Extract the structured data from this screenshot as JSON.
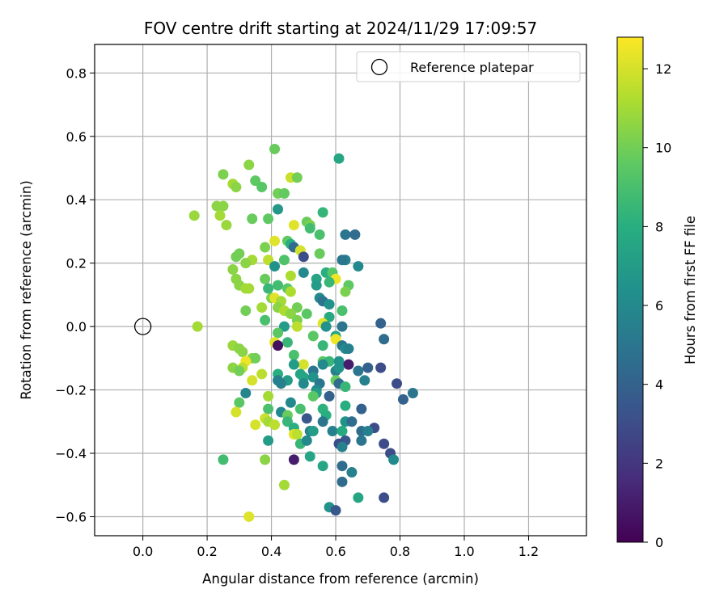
{
  "chart_data": {
    "type": "scatter",
    "title": "FOV centre drift starting at 2024/11/29 17:09:57",
    "xlabel": "Angular distance from reference (arcmin)",
    "ylabel": "Rotation from reference (arcmin)",
    "xlim": [
      -0.15,
      1.38
    ],
    "ylim": [
      -0.66,
      0.89
    ],
    "xticks": [
      0.0,
      0.2,
      0.4,
      0.6,
      0.8,
      1.0,
      1.2
    ],
    "yticks": [
      -0.6,
      -0.4,
      -0.2,
      0.0,
      0.2,
      0.4,
      0.6,
      0.8
    ],
    "xtick_labels": [
      "0.0",
      "0.2",
      "0.4",
      "0.6",
      "0.8",
      "1.0",
      "1.2"
    ],
    "ytick_labels": [
      "−0.6",
      "−0.4",
      "−0.2",
      "0.0",
      "0.2",
      "0.4",
      "0.6",
      "0.8"
    ],
    "grid": true,
    "legend": {
      "position": "top-right",
      "entries": [
        {
          "label": "Reference platepar",
          "marker": "open-circle"
        }
      ]
    },
    "reference_point": {
      "x": 0.0,
      "y": 0.0
    },
    "colorbar": {
      "label": "Hours from first FF file",
      "colormap": "viridis",
      "range": [
        0,
        12.8
      ],
      "ticks": [
        0,
        2,
        4,
        6,
        8,
        10,
        12
      ],
      "tick_labels": [
        "0",
        "2",
        "4",
        "6",
        "8",
        "10",
        "12"
      ]
    },
    "points": [
      {
        "x": 0.41,
        "y": 0.56,
        "h": 9.8
      },
      {
        "x": 0.61,
        "y": 0.53,
        "h": 7.5
      },
      {
        "x": 0.33,
        "y": 0.51,
        "h": 10.5
      },
      {
        "x": 0.25,
        "y": 0.48,
        "h": 10.2
      },
      {
        "x": 0.46,
        "y": 0.47,
        "h": 11.8
      },
      {
        "x": 0.48,
        "y": 0.47,
        "h": 10.0
      },
      {
        "x": 0.35,
        "y": 0.46,
        "h": 9.6
      },
      {
        "x": 0.28,
        "y": 0.45,
        "h": 11.0
      },
      {
        "x": 0.29,
        "y": 0.44,
        "h": 10.5
      },
      {
        "x": 0.37,
        "y": 0.44,
        "h": 9.4
      },
      {
        "x": 0.42,
        "y": 0.42,
        "h": 10.0
      },
      {
        "x": 0.44,
        "y": 0.42,
        "h": 9.7
      },
      {
        "x": 0.23,
        "y": 0.38,
        "h": 10.5
      },
      {
        "x": 0.25,
        "y": 0.38,
        "h": 10.5
      },
      {
        "x": 0.42,
        "y": 0.37,
        "h": 6.8
      },
      {
        "x": 0.56,
        "y": 0.36,
        "h": 8.4
      },
      {
        "x": 0.16,
        "y": 0.35,
        "h": 10.8
      },
      {
        "x": 0.24,
        "y": 0.35,
        "h": 11.0
      },
      {
        "x": 0.34,
        "y": 0.34,
        "h": 9.8
      },
      {
        "x": 0.39,
        "y": 0.34,
        "h": 9.6
      },
      {
        "x": 0.51,
        "y": 0.33,
        "h": 9.8
      },
      {
        "x": 0.52,
        "y": 0.32,
        "h": 10.2
      },
      {
        "x": 0.26,
        "y": 0.32,
        "h": 10.8
      },
      {
        "x": 0.47,
        "y": 0.32,
        "h": 12.2
      },
      {
        "x": 0.52,
        "y": 0.31,
        "h": 8.8
      },
      {
        "x": 0.55,
        "y": 0.29,
        "h": 9.0
      },
      {
        "x": 0.63,
        "y": 0.29,
        "h": 5.0
      },
      {
        "x": 0.66,
        "y": 0.29,
        "h": 4.5
      },
      {
        "x": 0.41,
        "y": 0.27,
        "h": 12.2
      },
      {
        "x": 0.45,
        "y": 0.27,
        "h": 9.6
      },
      {
        "x": 0.46,
        "y": 0.26,
        "h": 8.0
      },
      {
        "x": 0.38,
        "y": 0.25,
        "h": 10.2
      },
      {
        "x": 0.47,
        "y": 0.25,
        "h": 4.5
      },
      {
        "x": 0.49,
        "y": 0.24,
        "h": 12.0
      },
      {
        "x": 0.3,
        "y": 0.23,
        "h": 10.0
      },
      {
        "x": 0.5,
        "y": 0.22,
        "h": 3.0
      },
      {
        "x": 0.55,
        "y": 0.23,
        "h": 9.8
      },
      {
        "x": 0.29,
        "y": 0.22,
        "h": 10.0
      },
      {
        "x": 0.39,
        "y": 0.21,
        "h": 11.5
      },
      {
        "x": 0.44,
        "y": 0.21,
        "h": 9.2
      },
      {
        "x": 0.34,
        "y": 0.21,
        "h": 11.0
      },
      {
        "x": 0.32,
        "y": 0.2,
        "h": 10.5
      },
      {
        "x": 0.63,
        "y": 0.21,
        "h": 5.5
      },
      {
        "x": 0.41,
        "y": 0.19,
        "h": 6.5
      },
      {
        "x": 0.62,
        "y": 0.21,
        "h": 5.0
      },
      {
        "x": 0.67,
        "y": 0.19,
        "h": 6.0
      },
      {
        "x": 0.28,
        "y": 0.18,
        "h": 10.5
      },
      {
        "x": 0.5,
        "y": 0.17,
        "h": 6.0
      },
      {
        "x": 0.57,
        "y": 0.17,
        "h": 8.0
      },
      {
        "x": 0.59,
        "y": 0.17,
        "h": 9.4
      },
      {
        "x": 0.46,
        "y": 0.16,
        "h": 11.2
      },
      {
        "x": 0.29,
        "y": 0.15,
        "h": 10.5
      },
      {
        "x": 0.38,
        "y": 0.15,
        "h": 9.8
      },
      {
        "x": 0.54,
        "y": 0.15,
        "h": 7.5
      },
      {
        "x": 0.6,
        "y": 0.15,
        "h": 12.5
      },
      {
        "x": 0.3,
        "y": 0.13,
        "h": 10.5
      },
      {
        "x": 0.42,
        "y": 0.13,
        "h": 8.8
      },
      {
        "x": 0.39,
        "y": 0.12,
        "h": 8.5
      },
      {
        "x": 0.54,
        "y": 0.13,
        "h": 7.0
      },
      {
        "x": 0.58,
        "y": 0.14,
        "h": 8.5
      },
      {
        "x": 0.64,
        "y": 0.13,
        "h": 9.6
      },
      {
        "x": 0.32,
        "y": 0.12,
        "h": 11.0
      },
      {
        "x": 0.33,
        "y": 0.12,
        "h": 11.0
      },
      {
        "x": 0.45,
        "y": 0.12,
        "h": 9.5
      },
      {
        "x": 0.63,
        "y": 0.11,
        "h": 10.2
      },
      {
        "x": 0.46,
        "y": 0.11,
        "h": 11.2
      },
      {
        "x": 0.4,
        "y": 0.09,
        "h": 10.2
      },
      {
        "x": 0.41,
        "y": 0.09,
        "h": 12.2
      },
      {
        "x": 0.55,
        "y": 0.09,
        "h": 6.0
      },
      {
        "x": 0.43,
        "y": 0.08,
        "h": 11.0
      },
      {
        "x": 0.56,
        "y": 0.08,
        "h": 5.0
      },
      {
        "x": 0.58,
        "y": 0.07,
        "h": 6.5
      },
      {
        "x": 0.42,
        "y": 0.06,
        "h": 10.5
      },
      {
        "x": 0.37,
        "y": 0.06,
        "h": 11.0
      },
      {
        "x": 0.48,
        "y": 0.06,
        "h": 10.0
      },
      {
        "x": 0.32,
        "y": 0.05,
        "h": 10.0
      },
      {
        "x": 0.62,
        "y": 0.05,
        "h": 9.0
      },
      {
        "x": 0.44,
        "y": 0.05,
        "h": 11.2
      },
      {
        "x": 0.46,
        "y": 0.04,
        "h": 10.5
      },
      {
        "x": 0.51,
        "y": 0.04,
        "h": 9.5
      },
      {
        "x": 0.58,
        "y": 0.03,
        "h": 7.8
      },
      {
        "x": 0.38,
        "y": 0.02,
        "h": 9.0
      },
      {
        "x": 0.48,
        "y": 0.02,
        "h": 10.2
      },
      {
        "x": 0.56,
        "y": 0.01,
        "h": 12.2
      },
      {
        "x": 0.17,
        "y": 0.0,
        "h": 11.0
      },
      {
        "x": 0.44,
        "y": 0.0,
        "h": 7.0
      },
      {
        "x": 0.48,
        "y": 0.0,
        "h": 11.5
      },
      {
        "x": 0.57,
        "y": 0.0,
        "h": 6.5
      },
      {
        "x": 0.62,
        "y": 0.0,
        "h": 5.0
      },
      {
        "x": 0.74,
        "y": 0.01,
        "h": 4.0
      },
      {
        "x": 0.42,
        "y": -0.02,
        "h": 9.5
      },
      {
        "x": 0.53,
        "y": -0.03,
        "h": 9.5
      },
      {
        "x": 0.6,
        "y": -0.03,
        "h": 7.5
      },
      {
        "x": 0.41,
        "y": -0.05,
        "h": 12.2
      },
      {
        "x": 0.6,
        "y": -0.04,
        "h": 12.5
      },
      {
        "x": 0.75,
        "y": -0.04,
        "h": 4.5
      },
      {
        "x": 0.45,
        "y": -0.05,
        "h": 8.5
      },
      {
        "x": 0.28,
        "y": -0.06,
        "h": 10.8
      },
      {
        "x": 0.42,
        "y": -0.06,
        "h": 0.5
      },
      {
        "x": 0.62,
        "y": -0.06,
        "h": 5.0
      },
      {
        "x": 0.3,
        "y": -0.07,
        "h": 10.5
      },
      {
        "x": 0.56,
        "y": -0.06,
        "h": 8.5
      },
      {
        "x": 0.63,
        "y": -0.07,
        "h": 6.2
      },
      {
        "x": 0.64,
        "y": -0.07,
        "h": 5.5
      },
      {
        "x": 0.31,
        "y": -0.08,
        "h": 10.5
      },
      {
        "x": 0.47,
        "y": -0.09,
        "h": 9.0
      },
      {
        "x": 0.34,
        "y": -0.1,
        "h": 10.5
      },
      {
        "x": 0.35,
        "y": -0.1,
        "h": 10.0
      },
      {
        "x": 0.56,
        "y": -0.11,
        "h": 9.5
      },
      {
        "x": 0.58,
        "y": -0.11,
        "h": 8.5
      },
      {
        "x": 0.61,
        "y": -0.11,
        "h": 6.5
      },
      {
        "x": 0.32,
        "y": -0.11,
        "h": 12.5
      },
      {
        "x": 0.5,
        "y": -0.12,
        "h": 12.0
      },
      {
        "x": 0.47,
        "y": -0.12,
        "h": 7.0
      },
      {
        "x": 0.56,
        "y": -0.12,
        "h": 6.0
      },
      {
        "x": 0.64,
        "y": -0.12,
        "h": 1.0
      },
      {
        "x": 0.28,
        "y": -0.13,
        "h": 10.5
      },
      {
        "x": 0.31,
        "y": -0.13,
        "h": 11.5
      },
      {
        "x": 0.3,
        "y": -0.14,
        "h": 10.0
      },
      {
        "x": 0.53,
        "y": -0.14,
        "h": 5.0
      },
      {
        "x": 0.6,
        "y": -0.14,
        "h": 5.5
      },
      {
        "x": 0.61,
        "y": -0.13,
        "h": 6.5
      },
      {
        "x": 0.67,
        "y": -0.14,
        "h": 5.0
      },
      {
        "x": 0.7,
        "y": -0.13,
        "h": 4.0
      },
      {
        "x": 0.74,
        "y": -0.13,
        "h": 3.0
      },
      {
        "x": 0.37,
        "y": -0.15,
        "h": 11.5
      },
      {
        "x": 0.42,
        "y": -0.15,
        "h": 8.0
      },
      {
        "x": 0.49,
        "y": -0.15,
        "h": 7.5
      },
      {
        "x": 0.34,
        "y": -0.17,
        "h": 12.0
      },
      {
        "x": 0.42,
        "y": -0.17,
        "h": 5.5
      },
      {
        "x": 0.45,
        "y": -0.17,
        "h": 7.0
      },
      {
        "x": 0.5,
        "y": -0.16,
        "h": 7.5
      },
      {
        "x": 0.53,
        "y": -0.16,
        "h": 6.5
      },
      {
        "x": 0.6,
        "y": -0.17,
        "h": 9.8
      },
      {
        "x": 0.69,
        "y": -0.17,
        "h": 5.5
      },
      {
        "x": 0.43,
        "y": -0.18,
        "h": 5.5
      },
      {
        "x": 0.5,
        "y": -0.18,
        "h": 6.0
      },
      {
        "x": 0.55,
        "y": -0.18,
        "h": 5.0
      },
      {
        "x": 0.61,
        "y": -0.18,
        "h": 4.5
      },
      {
        "x": 0.63,
        "y": -0.19,
        "h": 8.5
      },
      {
        "x": 0.79,
        "y": -0.18,
        "h": 3.0
      },
      {
        "x": 0.54,
        "y": -0.2,
        "h": 6.0
      },
      {
        "x": 0.54,
        "y": -0.21,
        "h": 7.0
      },
      {
        "x": 0.32,
        "y": -0.21,
        "h": 5.8
      },
      {
        "x": 0.53,
        "y": -0.22,
        "h": 9.5
      },
      {
        "x": 0.39,
        "y": -0.22,
        "h": 11.0
      },
      {
        "x": 0.58,
        "y": -0.22,
        "h": 4.0
      },
      {
        "x": 0.84,
        "y": -0.21,
        "h": 5.0
      },
      {
        "x": 0.81,
        "y": -0.23,
        "h": 4.0
      },
      {
        "x": 0.3,
        "y": -0.24,
        "h": 9.5
      },
      {
        "x": 0.46,
        "y": -0.24,
        "h": 6.0
      },
      {
        "x": 0.63,
        "y": -0.25,
        "h": 8.0
      },
      {
        "x": 0.49,
        "y": -0.26,
        "h": 9.0
      },
      {
        "x": 0.56,
        "y": -0.26,
        "h": 8.2
      },
      {
        "x": 0.68,
        "y": -0.26,
        "h": 4.0
      },
      {
        "x": 0.39,
        "y": -0.26,
        "h": 9.0
      },
      {
        "x": 0.29,
        "y": -0.27,
        "h": 12.0
      },
      {
        "x": 0.43,
        "y": -0.27,
        "h": 6.0
      },
      {
        "x": 0.45,
        "y": -0.28,
        "h": 9.8
      },
      {
        "x": 0.57,
        "y": -0.28,
        "h": 8.0
      },
      {
        "x": 0.38,
        "y": -0.29,
        "h": 11.8
      },
      {
        "x": 0.51,
        "y": -0.29,
        "h": 3.5
      },
      {
        "x": 0.39,
        "y": -0.3,
        "h": 11.0
      },
      {
        "x": 0.45,
        "y": -0.3,
        "h": 8.5
      },
      {
        "x": 0.56,
        "y": -0.3,
        "h": 5.0
      },
      {
        "x": 0.63,
        "y": -0.3,
        "h": 6.5
      },
      {
        "x": 0.65,
        "y": -0.3,
        "h": 4.5
      },
      {
        "x": 0.35,
        "y": -0.31,
        "h": 12.0
      },
      {
        "x": 0.41,
        "y": -0.31,
        "h": 11.5
      },
      {
        "x": 0.72,
        "y": -0.32,
        "h": 3.0
      },
      {
        "x": 0.47,
        "y": -0.32,
        "h": 8.0
      },
      {
        "x": 0.52,
        "y": -0.33,
        "h": 5.5
      },
      {
        "x": 0.59,
        "y": -0.33,
        "h": 5.5
      },
      {
        "x": 0.68,
        "y": -0.33,
        "h": 4.5
      },
      {
        "x": 0.53,
        "y": -0.33,
        "h": 7.0
      },
      {
        "x": 0.62,
        "y": -0.33,
        "h": 7.8
      },
      {
        "x": 0.47,
        "y": -0.34,
        "h": 12.2
      },
      {
        "x": 0.7,
        "y": -0.33,
        "h": 5.5
      },
      {
        "x": 0.48,
        "y": -0.34,
        "h": 11.5
      },
      {
        "x": 0.63,
        "y": -0.36,
        "h": 3.5
      },
      {
        "x": 0.68,
        "y": -0.36,
        "h": 5.0
      },
      {
        "x": 0.39,
        "y": -0.36,
        "h": 7.0
      },
      {
        "x": 0.49,
        "y": -0.37,
        "h": 8.5
      },
      {
        "x": 0.61,
        "y": -0.37,
        "h": 3.0
      },
      {
        "x": 0.62,
        "y": -0.38,
        "h": 5.5
      },
      {
        "x": 0.75,
        "y": -0.37,
        "h": 3.0
      },
      {
        "x": 0.51,
        "y": -0.36,
        "h": 6.0
      },
      {
        "x": 0.77,
        "y": -0.4,
        "h": 3.0
      },
      {
        "x": 0.52,
        "y": -0.41,
        "h": 7.5
      },
      {
        "x": 0.47,
        "y": -0.42,
        "h": 1.0
      },
      {
        "x": 0.25,
        "y": -0.42,
        "h": 8.8
      },
      {
        "x": 0.38,
        "y": -0.42,
        "h": 10.5
      },
      {
        "x": 0.78,
        "y": -0.42,
        "h": 6.0
      },
      {
        "x": 0.56,
        "y": -0.44,
        "h": 7.5
      },
      {
        "x": 0.62,
        "y": -0.44,
        "h": 4.5
      },
      {
        "x": 0.65,
        "y": -0.46,
        "h": 5.5
      },
      {
        "x": 0.62,
        "y": -0.49,
        "h": 4.5
      },
      {
        "x": 0.44,
        "y": -0.5,
        "h": 11.0
      },
      {
        "x": 0.75,
        "y": -0.54,
        "h": 3.0
      },
      {
        "x": 0.67,
        "y": -0.54,
        "h": 7.5
      },
      {
        "x": 0.58,
        "y": -0.57,
        "h": 6.5
      },
      {
        "x": 0.6,
        "y": -0.58,
        "h": 3.5
      },
      {
        "x": 0.33,
        "y": -0.6,
        "h": 12.2
      }
    ]
  },
  "colors": {
    "grid": "#b0b0b0",
    "axis": "#000000"
  }
}
